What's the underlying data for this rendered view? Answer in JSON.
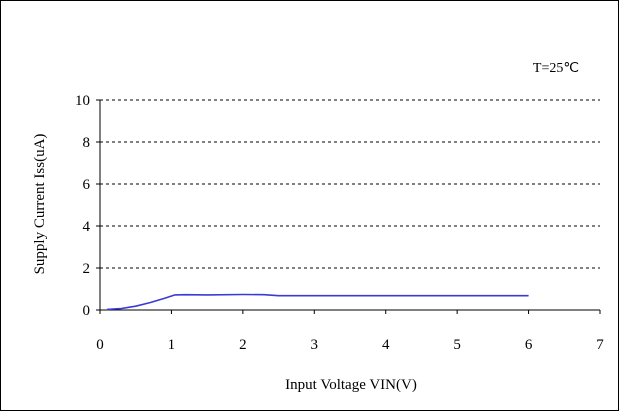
{
  "chart_data": {
    "type": "line",
    "annotation": "T=25℃",
    "xlabel": "Input Voltage VIN(V)",
    "ylabel": "Supply Current Iss(uA)",
    "xlim": [
      0,
      7
    ],
    "ylim": [
      0,
      10
    ],
    "xticks": [
      "0",
      "1",
      "2",
      "3",
      "4",
      "5",
      "6",
      "7"
    ],
    "yticks": [
      "0",
      "2",
      "4",
      "6",
      "8",
      "10"
    ],
    "grid": "horizontal dashed",
    "series": [
      {
        "color": "#3a3ad6",
        "x": [
          0.1,
          0.3,
          0.5,
          0.7,
          0.9,
          1.05,
          1.2,
          1.5,
          2.0,
          2.3,
          2.5,
          3.0,
          4.0,
          5.0,
          6.0
        ],
        "y": [
          0.03,
          0.07,
          0.18,
          0.35,
          0.55,
          0.72,
          0.73,
          0.72,
          0.74,
          0.73,
          0.68,
          0.68,
          0.68,
          0.68,
          0.68
        ]
      }
    ]
  }
}
